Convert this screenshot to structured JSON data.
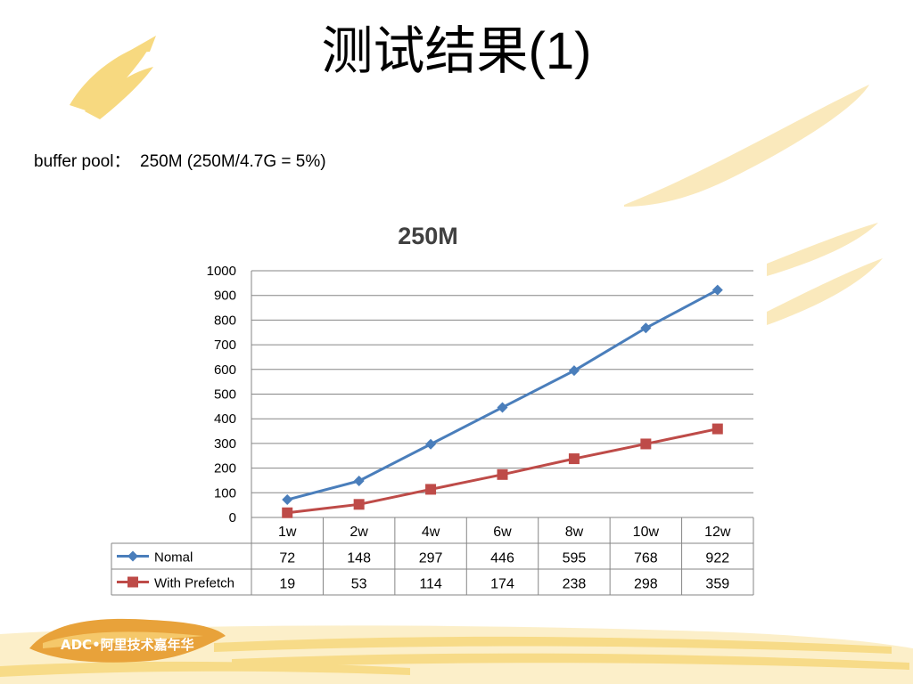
{
  "slide": {
    "title": "测试结果(1)",
    "subtitle": "buffer pool：  250M (250M/4.7G = 5%)"
  },
  "logo": {
    "text": "ADC•阿里技术嘉年华"
  },
  "colors": {
    "series_normal": "#4a7ebb",
    "series_prefetch": "#be4b48",
    "grid": "#868686",
    "deco": "#f6d36b"
  },
  "chart_data": {
    "type": "line",
    "title": "250M",
    "xlabel": "",
    "ylabel": "",
    "categories": [
      "1w",
      "2w",
      "4w",
      "6w",
      "8w",
      "10w",
      "12w"
    ],
    "ylim": [
      0,
      1000
    ],
    "yticks": [
      0,
      100,
      200,
      300,
      400,
      500,
      600,
      700,
      800,
      900,
      1000
    ],
    "grid": true,
    "legend": "data-table",
    "series": [
      {
        "name": "Nomal",
        "values": [
          72,
          148,
          297,
          446,
          595,
          768,
          922
        ],
        "marker": "diamond",
        "color": "#4a7ebb"
      },
      {
        "name": "With Prefetch",
        "values": [
          19,
          53,
          114,
          174,
          238,
          298,
          359
        ],
        "marker": "square",
        "color": "#be4b48"
      }
    ]
  }
}
